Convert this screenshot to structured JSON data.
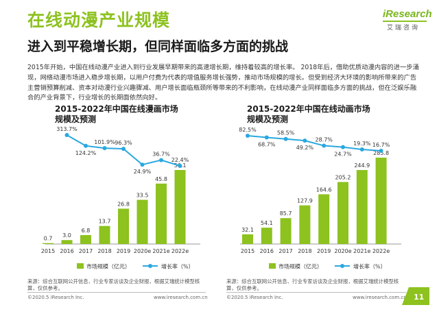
{
  "header": {
    "title": "在线动漫产业规模",
    "subtitle": "进入到平稳增长期，但同样面临多方面的挑战"
  },
  "logo": {
    "text": "iResearch",
    "cn": "艾瑞咨询"
  },
  "body_text": "2015年开始，中国在线动漫产业进入到行业发展早期带来的高速增长期，维持着较高的增长率。 2018年后，借助优质动漫内容的进一步涌现，网络动漫市场进入稳步增长期，以用户付费为代表的增值服务增长强势，推动市场规模的增长。但受到经济大环境的影响所带来的广告主营销预算削减、资本对动漫行业兴趣骤减、用户增长面临瓶颈所等带来的不利影响，在线动漫产业同样面临多方面的挑战，但在泛娱乐融合的产业背景下，行业增长的长期面依然向好。",
  "colors": {
    "bar": "#8dc21f",
    "line": "#29a8e0",
    "accent": "#8dc21f"
  },
  "chart_data": [
    {
      "type": "bar",
      "title": "2015-2022年中国在线漫画市场规模及预测",
      "categories": [
        "2015",
        "2016",
        "2017",
        "2018",
        "2019",
        "2020e",
        "2021e",
        "2022e"
      ],
      "series": [
        {
          "name": "市场规模（亿元）",
          "type": "bar",
          "values": [
            0.7,
            3.0,
            6.8,
            13.7,
            26.8,
            33.5,
            45.8,
            56.1
          ]
        },
        {
          "name": "增长率（%）",
          "type": "line",
          "values": [
            null,
            313.7,
            124.2,
            101.9,
            96.3,
            24.9,
            36.7,
            22.4
          ]
        }
      ],
      "legend": "bottom",
      "source": "来源：综合互联网公开信息、行业专家访谈及企业财报，根据艾瑞统计模型核算，仅供参考。",
      "footer_left": "©2020.5 iResearch Inc.",
      "footer_right": "www.iresearch.com.cn"
    },
    {
      "type": "bar",
      "title": "2015-2022年中国在线动画市场规模及预测",
      "categories": [
        "2015",
        "2016",
        "2017",
        "2018",
        "2019",
        "2020e",
        "2021e",
        "2022e"
      ],
      "series": [
        {
          "name": "市场规模（亿元）",
          "type": "bar",
          "values": [
            32.1,
            54.1,
            85.7,
            127.9,
            164.6,
            205.2,
            244.9,
            285.8
          ]
        },
        {
          "name": "增长率（%）",
          "type": "line",
          "values": [
            82.5,
            68.7,
            58.5,
            49.2,
            28.7,
            24.7,
            19.3,
            16.7
          ]
        }
      ],
      "legend": "bottom",
      "source": "来源：综合互联网公开信息、行业专家访谈及企业财报，根据艾瑞统计模型核算，仅供参考。",
      "footer_left": "©2020.5 iResearch Inc.",
      "footer_right": "www.iresearch.com.cn"
    }
  ],
  "page_number": "11"
}
